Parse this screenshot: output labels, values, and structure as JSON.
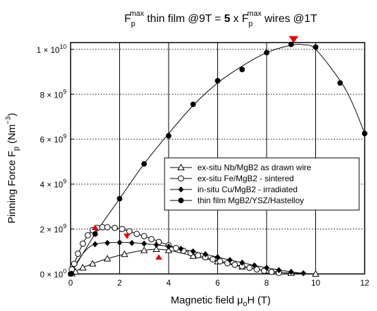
{
  "chart_data": {
    "type": "scatter",
    "title": {
      "base1": "F",
      "sub1": "p",
      "sup1": "max",
      "mid": " thin film @9T = ",
      "bold": "5",
      "mid2": " x F",
      "sub2": "p",
      "sup2": "max",
      "end": " wires @1T"
    },
    "xlabel": {
      "main": "Magnetic field ",
      "mu": "μ",
      "mu_sub": "o",
      "tail": "H (T)"
    },
    "ylabel": {
      "main": "Pinning Force F",
      "sub": "p",
      "paren": " (Nm",
      "sup": "−3",
      "close": ")"
    },
    "x_ticks": [
      "0",
      "2",
      "4",
      "6",
      "8",
      "10",
      "12"
    ],
    "x_tick_values": [
      0,
      2,
      4,
      6,
      8,
      10,
      12
    ],
    "y_ticks": [
      {
        "value": 0,
        "mant": "0 × 10",
        "exp": "0"
      },
      {
        "value": 2000000000.0,
        "mant": "2 × 10",
        "exp": "9"
      },
      {
        "value": 4000000000.0,
        "mant": "4 × 10",
        "exp": "9"
      },
      {
        "value": 6000000000.0,
        "mant": "6 × 10",
        "exp": "9"
      },
      {
        "value": 8000000000.0,
        "mant": "8 × 10",
        "exp": "9"
      },
      {
        "value": 10000000000.0,
        "mant": "1 × 10",
        "exp": "10"
      }
    ],
    "xlim": [
      0,
      12
    ],
    "ylim": [
      0,
      10300000000.0
    ],
    "grid": "dotted-horizontal-solid-vertical",
    "legend_position": "center-right",
    "series": [
      {
        "name": "ex-situ Nb/MgB2 as drawn wire",
        "marker": "triangle-open",
        "points": [
          [
            0.05,
            20000000.0
          ],
          [
            0.2,
            100000000.0
          ],
          [
            0.5,
            280000000.0
          ],
          [
            0.9,
            450000000.0
          ],
          [
            1.5,
            680000000.0
          ],
          [
            2.2,
            880000000.0
          ],
          [
            3.0,
            1050000000.0
          ],
          [
            3.5,
            1100000000.0
          ],
          [
            4.0,
            1050000000.0
          ],
          [
            5.0,
            800000000.0
          ],
          [
            6.0,
            550000000.0
          ],
          [
            7.0,
            320000000.0
          ],
          [
            8.0,
            140000000.0
          ],
          [
            9.0,
            40000000.0
          ],
          [
            10.0,
            0.0
          ]
        ],
        "curve": [
          [
            0,
            0
          ],
          [
            0.5,
            280000000.0
          ],
          [
            1,
            500000000.0
          ],
          [
            1.5,
            680000000.0
          ],
          [
            2,
            830000000.0
          ],
          [
            2.5,
            960000000.0
          ],
          [
            3,
            1050000000.0
          ],
          [
            3.5,
            1100000000.0
          ],
          [
            4,
            1050000000.0
          ],
          [
            4.5,
            930000000.0
          ],
          [
            5,
            800000000.0
          ],
          [
            6,
            550000000.0
          ],
          [
            7,
            320000000.0
          ],
          [
            8,
            140000000.0
          ],
          [
            9,
            40000000.0
          ],
          [
            10,
            0
          ]
        ]
      },
      {
        "name": "ex-situ Fe/MgB2 - sintered",
        "marker": "circle-open",
        "points": [
          [
            0.05,
            200000000.0
          ],
          [
            0.15,
            450000000.0
          ],
          [
            0.3,
            900000000.0
          ],
          [
            0.5,
            1350000000.0
          ],
          [
            0.7,
            1720000000.0
          ],
          [
            0.9,
            1950000000.0
          ],
          [
            1.1,
            2050000000.0
          ],
          [
            1.3,
            2080000000.0
          ],
          [
            1.5,
            2080000000.0
          ],
          [
            1.8,
            2050000000.0
          ],
          [
            2.1,
            2000000000.0
          ],
          [
            2.4,
            1900000000.0
          ],
          [
            2.7,
            1780000000.0
          ],
          [
            3.0,
            1680000000.0
          ],
          [
            3.3,
            1550000000.0
          ],
          [
            3.6,
            1420000000.0
          ],
          [
            4.0,
            1280000000.0
          ],
          [
            4.3,
            1150000000.0
          ],
          [
            4.6,
            1030000000.0
          ],
          [
            4.9,
            930000000.0
          ],
          [
            5.2,
            830000000.0
          ],
          [
            5.5,
            740000000.0
          ],
          [
            5.8,
            650000000.0
          ],
          [
            6.1,
            560000000.0
          ],
          [
            6.4,
            480000000.0
          ],
          [
            6.7,
            410000000.0
          ],
          [
            7.0,
            340000000.0
          ],
          [
            7.3,
            270000000.0
          ],
          [
            7.6,
            200000000.0
          ],
          [
            7.9,
            140000000.0
          ],
          [
            8.2,
            90000000.0
          ],
          [
            8.5,
            50000000.0
          ]
        ],
        "curve": [
          [
            0,
            50000000.0
          ],
          [
            0.2,
            600000000.0
          ],
          [
            0.5,
            1350000000.0
          ],
          [
            0.8,
            1850000000.0
          ],
          [
            1.1,
            2050000000.0
          ],
          [
            1.4,
            2080000000.0
          ],
          [
            2,
            2020000000.0
          ],
          [
            3,
            1680000000.0
          ],
          [
            4,
            1280000000.0
          ],
          [
            5,
            900000000.0
          ],
          [
            6,
            590000000.0
          ],
          [
            7,
            340000000.0
          ],
          [
            8,
            120000000.0
          ],
          [
            8.5,
            50000000.0
          ]
        ]
      },
      {
        "name": "in-situ Cu/MgB2 - irradiated",
        "marker": "diamond-filled",
        "points": [
          [
            0.05,
            20000000.0
          ],
          [
            1.0,
            1320000000.0
          ],
          [
            1.5,
            1380000000.0
          ],
          [
            2.0,
            1400000000.0
          ],
          [
            2.5,
            1380000000.0
          ],
          [
            3.0,
            1350000000.0
          ],
          [
            3.5,
            1300000000.0
          ],
          [
            4.0,
            1220000000.0
          ],
          [
            4.5,
            1120000000.0
          ],
          [
            5.0,
            1000000000.0
          ],
          [
            5.5,
            880000000.0
          ],
          [
            6.0,
            750000000.0
          ],
          [
            6.5,
            620000000.0
          ],
          [
            7.0,
            500000000.0
          ],
          [
            7.5,
            380000000.0
          ],
          [
            8.0,
            270000000.0
          ],
          [
            8.5,
            170000000.0
          ],
          [
            9.0,
            90000000.0
          ],
          [
            9.5,
            30000000.0
          ]
        ],
        "curve": [
          [
            0,
            20000000.0
          ],
          [
            0.5,
            900000000.0
          ],
          [
            1,
            1320000000.0
          ],
          [
            2,
            1400000000.0
          ],
          [
            3,
            1350000000.0
          ],
          [
            4,
            1220000000.0
          ],
          [
            5,
            1000000000.0
          ],
          [
            6,
            750000000.0
          ],
          [
            7,
            500000000.0
          ],
          [
            8,
            270000000.0
          ],
          [
            9,
            90000000.0
          ],
          [
            9.5,
            30000000.0
          ]
        ]
      },
      {
        "name": "thin film MgB2/YSZ/Hastelloy",
        "marker": "circle-filled",
        "points": [
          [
            0,
            0
          ],
          [
            1,
            1780000000.0
          ],
          [
            2,
            3350000000.0
          ],
          [
            3,
            4900000000.0
          ],
          [
            4,
            6150000000.0
          ],
          [
            5,
            7550000000.0
          ],
          [
            6,
            8600000000.0
          ],
          [
            7,
            9100000000.0
          ],
          [
            8,
            9850000000.0
          ],
          [
            9,
            10220000000.0
          ],
          [
            10,
            10100000000.0
          ],
          [
            11,
            8500000000.0
          ],
          [
            12,
            6250000000.0
          ]
        ],
        "curve": [
          [
            0,
            0
          ],
          [
            1,
            1780000000.0
          ],
          [
            2,
            3350000000.0
          ],
          [
            3,
            4900000000.0
          ],
          [
            4,
            6250000000.0
          ],
          [
            5,
            7500000000.0
          ],
          [
            6,
            8500000000.0
          ],
          [
            7,
            9250000000.0
          ],
          [
            8,
            9850000000.0
          ],
          [
            9,
            10180000000.0
          ],
          [
            9.5,
            10200000000.0
          ],
          [
            10,
            10000000000.0
          ],
          [
            11,
            8600000000.0
          ],
          [
            11.5,
            7600000000.0
          ],
          [
            12,
            6250000000.0
          ]
        ]
      }
    ],
    "max_markers": [
      {
        "x": 9.1,
        "y": 10280000000.0,
        "direction": "down",
        "size": "large"
      },
      {
        "x": 1.0,
        "y": 2200000000.0,
        "direction": "up",
        "size": "small"
      },
      {
        "x": 2.3,
        "y": 1550000000.0,
        "direction": "down",
        "size": "small"
      },
      {
        "x": 3.6,
        "y": 880000000.0,
        "direction": "up",
        "size": "small"
      }
    ],
    "marker_color": "#e60000"
  }
}
